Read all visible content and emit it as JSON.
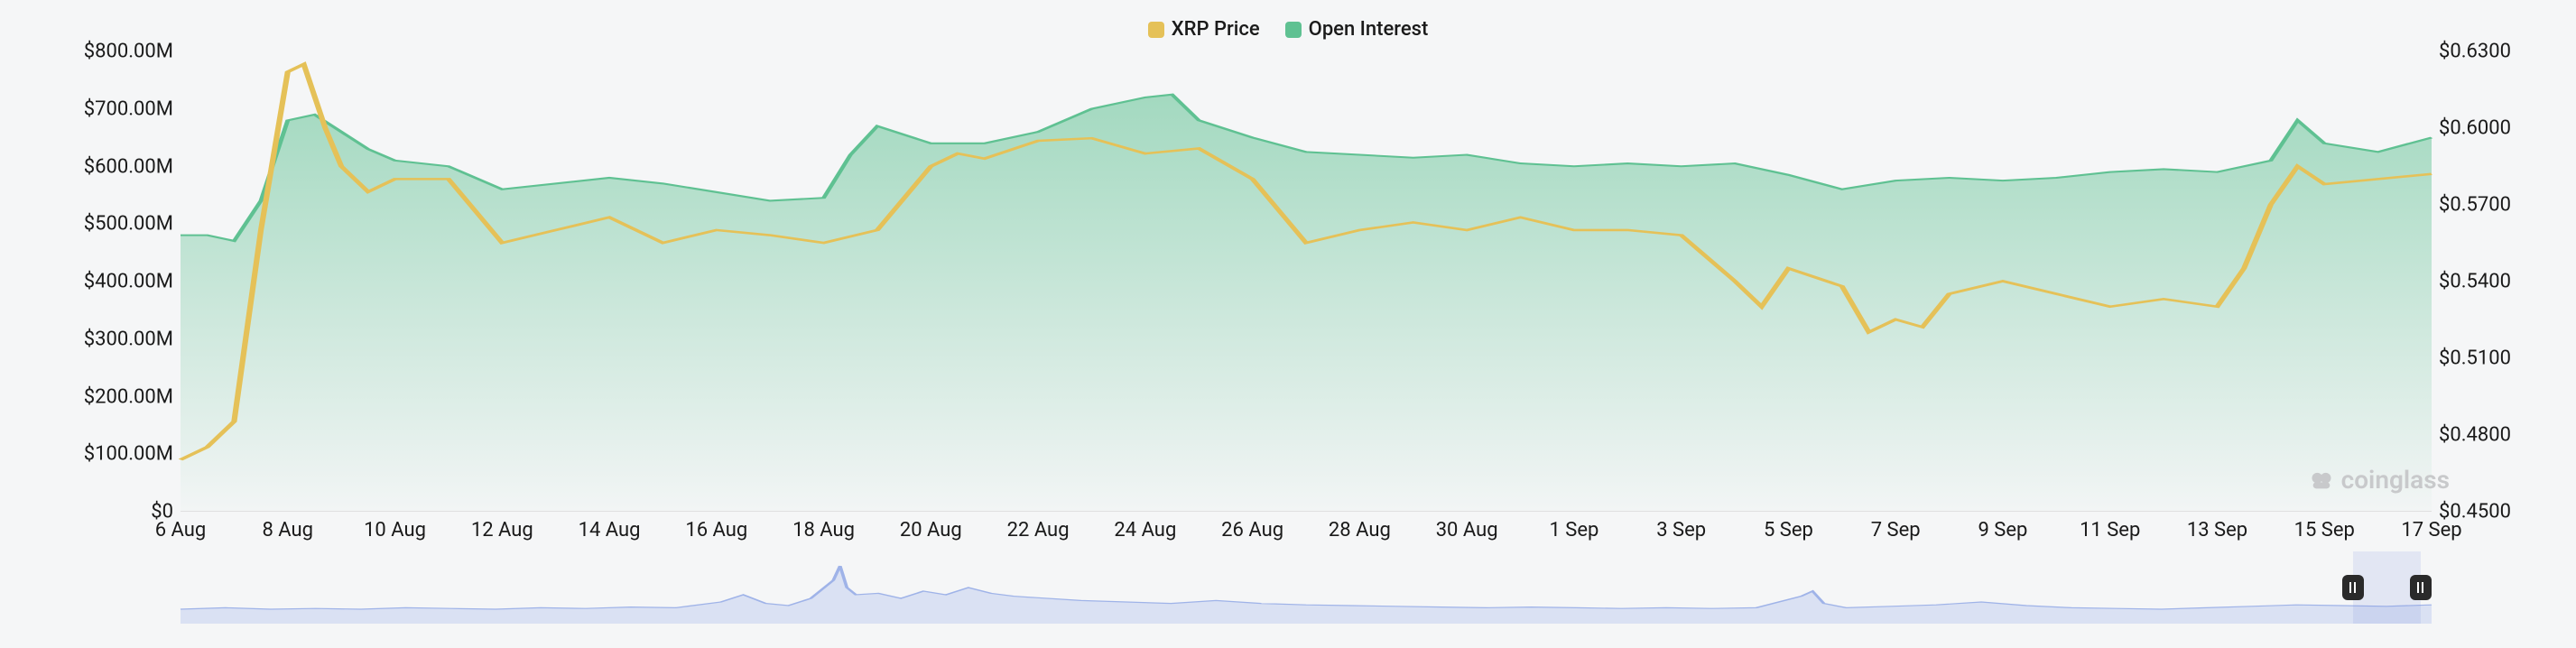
{
  "legend": {
    "series1": {
      "label": "XRP Price",
      "color": "#e5c158"
    },
    "series2": {
      "label": "Open Interest",
      "color": "#5fc192"
    }
  },
  "chart": {
    "type": "area+line",
    "background_color": "#f5f6f7",
    "grid_color": "#e8e8e8",
    "text_color": "#1a1a1a",
    "label_fontsize": 22,
    "y_left": {
      "min": 0,
      "max": 800,
      "ticks": [
        {
          "v": 0,
          "label": "$0"
        },
        {
          "v": 100,
          "label": "$100.00M"
        },
        {
          "v": 200,
          "label": "$200.00M"
        },
        {
          "v": 300,
          "label": "$300.00M"
        },
        {
          "v": 400,
          "label": "$400.00M"
        },
        {
          "v": 500,
          "label": "$500.00M"
        },
        {
          "v": 600,
          "label": "$600.00M"
        },
        {
          "v": 700,
          "label": "$700.00M"
        },
        {
          "v": 800,
          "label": "$800.00M"
        }
      ]
    },
    "y_right": {
      "min": 0.45,
      "max": 0.63,
      "ticks": [
        {
          "v": 0.45,
          "label": "$0.4500"
        },
        {
          "v": 0.48,
          "label": "$0.4800"
        },
        {
          "v": 0.51,
          "label": "$0.5100"
        },
        {
          "v": 0.54,
          "label": "$0.5400"
        },
        {
          "v": 0.57,
          "label": "$0.5700"
        },
        {
          "v": 0.6,
          "label": "$0.6000"
        },
        {
          "v": 0.63,
          "label": "$0.6300"
        }
      ]
    },
    "x_axis": {
      "min": 0,
      "max": 42,
      "ticks": [
        {
          "v": 0,
          "label": "6 Aug"
        },
        {
          "v": 2,
          "label": "8 Aug"
        },
        {
          "v": 4,
          "label": "10 Aug"
        },
        {
          "v": 6,
          "label": "12 Aug"
        },
        {
          "v": 8,
          "label": "14 Aug"
        },
        {
          "v": 10,
          "label": "16 Aug"
        },
        {
          "v": 12,
          "label": "18 Aug"
        },
        {
          "v": 14,
          "label": "20 Aug"
        },
        {
          "v": 16,
          "label": "22 Aug"
        },
        {
          "v": 18,
          "label": "24 Aug"
        },
        {
          "v": 20,
          "label": "26 Aug"
        },
        {
          "v": 22,
          "label": "28 Aug"
        },
        {
          "v": 24,
          "label": "30 Aug"
        },
        {
          "v": 26,
          "label": "1 Sep"
        },
        {
          "v": 28,
          "label": "3 Sep"
        },
        {
          "v": 30,
          "label": "5 Sep"
        },
        {
          "v": 32,
          "label": "7 Sep"
        },
        {
          "v": 34,
          "label": "9 Sep"
        },
        {
          "v": 36,
          "label": "11 Sep"
        },
        {
          "v": 38,
          "label": "13 Sep"
        },
        {
          "v": 40,
          "label": "15 Sep"
        },
        {
          "v": 42,
          "label": "17 Sep"
        }
      ]
    },
    "open_interest": {
      "color": "#5fc192",
      "fill_top": "rgba(95,193,146,0.55)",
      "fill_bottom": "rgba(95,193,146,0.02)",
      "line_width": 2,
      "data": [
        [
          0,
          480
        ],
        [
          0.5,
          480
        ],
        [
          1,
          470
        ],
        [
          1.5,
          540
        ],
        [
          2,
          680
        ],
        [
          2.5,
          690
        ],
        [
          3,
          660
        ],
        [
          3.5,
          630
        ],
        [
          4,
          610
        ],
        [
          5,
          600
        ],
        [
          6,
          560
        ],
        [
          7,
          570
        ],
        [
          8,
          580
        ],
        [
          9,
          570
        ],
        [
          10,
          555
        ],
        [
          11,
          540
        ],
        [
          12,
          545
        ],
        [
          12.5,
          620
        ],
        [
          13,
          670
        ],
        [
          14,
          640
        ],
        [
          15,
          640
        ],
        [
          16,
          660
        ],
        [
          17,
          700
        ],
        [
          18,
          720
        ],
        [
          18.5,
          725
        ],
        [
          19,
          680
        ],
        [
          20,
          650
        ],
        [
          21,
          625
        ],
        [
          22,
          620
        ],
        [
          23,
          615
        ],
        [
          24,
          620
        ],
        [
          25,
          605
        ],
        [
          26,
          600
        ],
        [
          27,
          605
        ],
        [
          28,
          600
        ],
        [
          29,
          605
        ],
        [
          30,
          585
        ],
        [
          31,
          560
        ],
        [
          32,
          575
        ],
        [
          33,
          580
        ],
        [
          34,
          575
        ],
        [
          35,
          580
        ],
        [
          36,
          590
        ],
        [
          37,
          595
        ],
        [
          38,
          590
        ],
        [
          39,
          610
        ],
        [
          39.5,
          680
        ],
        [
          40,
          640
        ],
        [
          41,
          625
        ],
        [
          42,
          650
        ]
      ]
    },
    "xrp_price": {
      "color": "#e5c158",
      "line_width": 2.5,
      "data": [
        [
          0,
          0.47
        ],
        [
          0.5,
          0.475
        ],
        [
          1,
          0.485
        ],
        [
          1.5,
          0.56
        ],
        [
          2,
          0.622
        ],
        [
          2.3,
          0.625
        ],
        [
          2.7,
          0.6
        ],
        [
          3,
          0.585
        ],
        [
          3.5,
          0.575
        ],
        [
          4,
          0.58
        ],
        [
          5,
          0.58
        ],
        [
          6,
          0.555
        ],
        [
          7,
          0.56
        ],
        [
          8,
          0.565
        ],
        [
          9,
          0.555
        ],
        [
          10,
          0.56
        ],
        [
          11,
          0.558
        ],
        [
          12,
          0.555
        ],
        [
          13,
          0.56
        ],
        [
          14,
          0.585
        ],
        [
          14.5,
          0.59
        ],
        [
          15,
          0.588
        ],
        [
          16,
          0.595
        ],
        [
          17,
          0.596
        ],
        [
          18,
          0.59
        ],
        [
          19,
          0.592
        ],
        [
          20,
          0.58
        ],
        [
          21,
          0.555
        ],
        [
          22,
          0.56
        ],
        [
          23,
          0.563
        ],
        [
          24,
          0.56
        ],
        [
          25,
          0.565
        ],
        [
          26,
          0.56
        ],
        [
          27,
          0.56
        ],
        [
          28,
          0.558
        ],
        [
          29,
          0.54
        ],
        [
          29.5,
          0.53
        ],
        [
          30,
          0.545
        ],
        [
          31,
          0.538
        ],
        [
          31.5,
          0.52
        ],
        [
          32,
          0.525
        ],
        [
          32.5,
          0.522
        ],
        [
          33,
          0.535
        ],
        [
          34,
          0.54
        ],
        [
          35,
          0.535
        ],
        [
          36,
          0.53
        ],
        [
          37,
          0.533
        ],
        [
          38,
          0.53
        ],
        [
          38.5,
          0.545
        ],
        [
          39,
          0.57
        ],
        [
          39.5,
          0.585
        ],
        [
          40,
          0.578
        ],
        [
          41,
          0.58
        ],
        [
          42,
          0.582
        ]
      ]
    }
  },
  "brush": {
    "line_color": "#9fb3e8",
    "fill_color": "rgba(200,212,240,0.6)",
    "handle_color": "#2a2a2a",
    "selection_start_pct": 96.5,
    "selection_end_pct": 99.5,
    "data": [
      [
        0,
        20
      ],
      [
        2,
        22
      ],
      [
        4,
        20
      ],
      [
        6,
        21
      ],
      [
        8,
        20
      ],
      [
        10,
        22
      ],
      [
        12,
        21
      ],
      [
        14,
        20
      ],
      [
        16,
        22
      ],
      [
        18,
        21
      ],
      [
        20,
        23
      ],
      [
        22,
        22
      ],
      [
        24,
        30
      ],
      [
        25,
        40
      ],
      [
        26,
        28
      ],
      [
        27,
        25
      ],
      [
        28,
        35
      ],
      [
        29,
        60
      ],
      [
        29.3,
        80
      ],
      [
        29.6,
        50
      ],
      [
        30,
        40
      ],
      [
        31,
        42
      ],
      [
        32,
        35
      ],
      [
        33,
        45
      ],
      [
        34,
        40
      ],
      [
        35,
        50
      ],
      [
        36,
        42
      ],
      [
        37,
        38
      ],
      [
        38,
        36
      ],
      [
        40,
        32
      ],
      [
        42,
        30
      ],
      [
        44,
        28
      ],
      [
        46,
        32
      ],
      [
        48,
        28
      ],
      [
        50,
        26
      ],
      [
        52,
        25
      ],
      [
        54,
        24
      ],
      [
        56,
        23
      ],
      [
        58,
        22
      ],
      [
        60,
        23
      ],
      [
        62,
        22
      ],
      [
        64,
        21
      ],
      [
        66,
        22
      ],
      [
        68,
        21
      ],
      [
        70,
        22
      ],
      [
        72,
        38
      ],
      [
        72.5,
        45
      ],
      [
        73,
        28
      ],
      [
        74,
        22
      ],
      [
        76,
        24
      ],
      [
        78,
        26
      ],
      [
        80,
        30
      ],
      [
        82,
        25
      ],
      [
        84,
        22
      ],
      [
        86,
        21
      ],
      [
        88,
        20
      ],
      [
        90,
        22
      ],
      [
        92,
        24
      ],
      [
        94,
        26
      ],
      [
        96,
        25
      ],
      [
        98,
        24
      ],
      [
        100,
        26
      ]
    ],
    "y_max": 100
  },
  "watermark": {
    "text": "coinglass",
    "color": "#c8c9cb"
  }
}
